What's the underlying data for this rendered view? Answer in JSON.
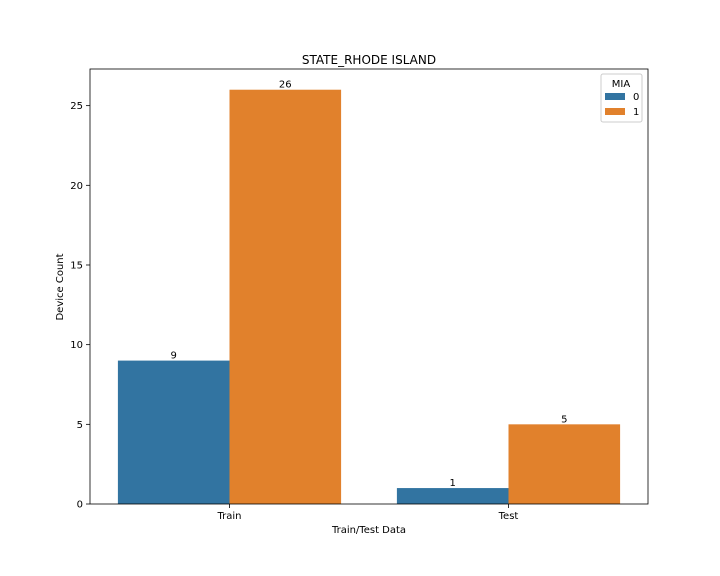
{
  "chart_data": {
    "type": "bar",
    "title": "STATE_RHODE ISLAND",
    "xlabel": "Train/Test Data",
    "ylabel": "Device Count",
    "categories": [
      "Train",
      "Test"
    ],
    "series": [
      {
        "name": "0",
        "values": [
          9,
          1
        ],
        "color": "#3274a1"
      },
      {
        "name": "1",
        "values": [
          26,
          5
        ],
        "color": "#e1812c"
      }
    ],
    "ylim": [
      0,
      27.3
    ],
    "yticks": [
      0,
      5,
      10,
      15,
      20,
      25
    ],
    "legend": {
      "title": "MIA",
      "placement": "top-right"
    },
    "data_labels": true,
    "grid": false
  }
}
